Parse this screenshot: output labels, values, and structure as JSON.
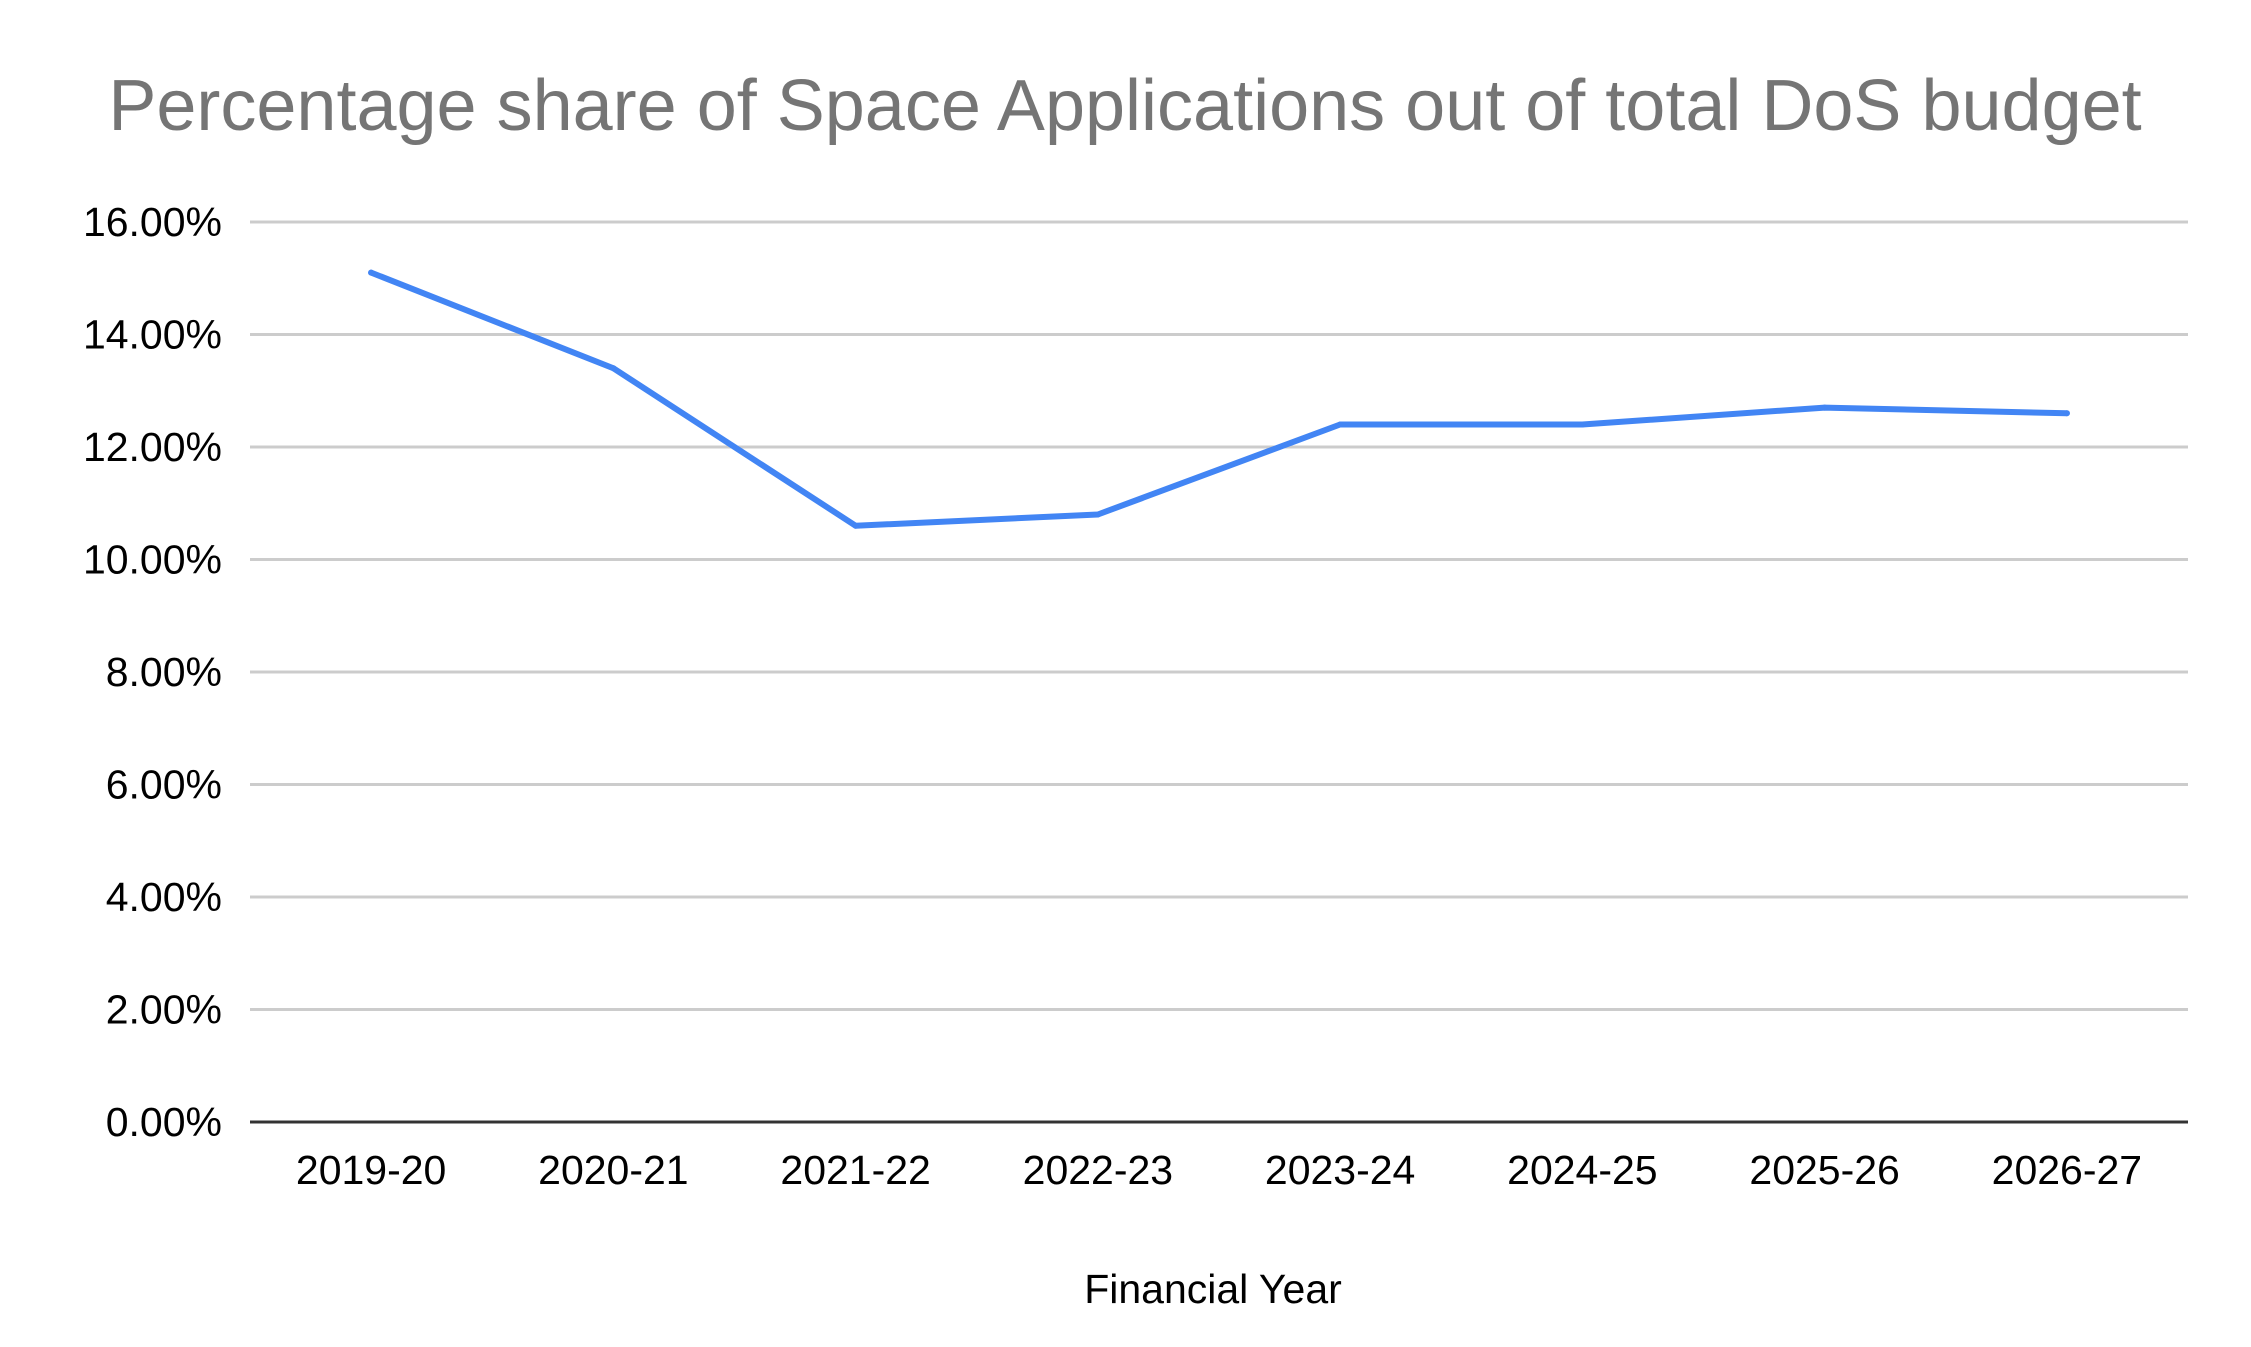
{
  "chart_data": {
    "type": "line",
    "title": "Percentage share of Space Applications out of total DoS budget",
    "xlabel": "Financial Year",
    "ylabel": "",
    "categories": [
      "2019-20",
      "2020-21",
      "2021-22",
      "2022-23",
      "2023-24",
      "2024-25",
      "2025-26",
      "2026-27"
    ],
    "series": [
      {
        "name": "Percentage share",
        "values": [
          15.1,
          13.4,
          10.6,
          10.8,
          12.4,
          12.4,
          12.7,
          12.6
        ],
        "color": "#4285f4"
      }
    ],
    "ylim": [
      0,
      16
    ],
    "yticks": [
      0,
      2,
      4,
      6,
      8,
      10,
      12,
      14,
      16
    ],
    "ytick_labels": [
      "0.00%",
      "2.00%",
      "4.00%",
      "6.00%",
      "8.00%",
      "10.00%",
      "12.00%",
      "14.00%",
      "16.00%"
    ],
    "grid": true,
    "legend": "none"
  },
  "colors": {
    "title": "#757575",
    "grid": "#cccccc",
    "baseline": "#333333",
    "text": "#000000"
  }
}
